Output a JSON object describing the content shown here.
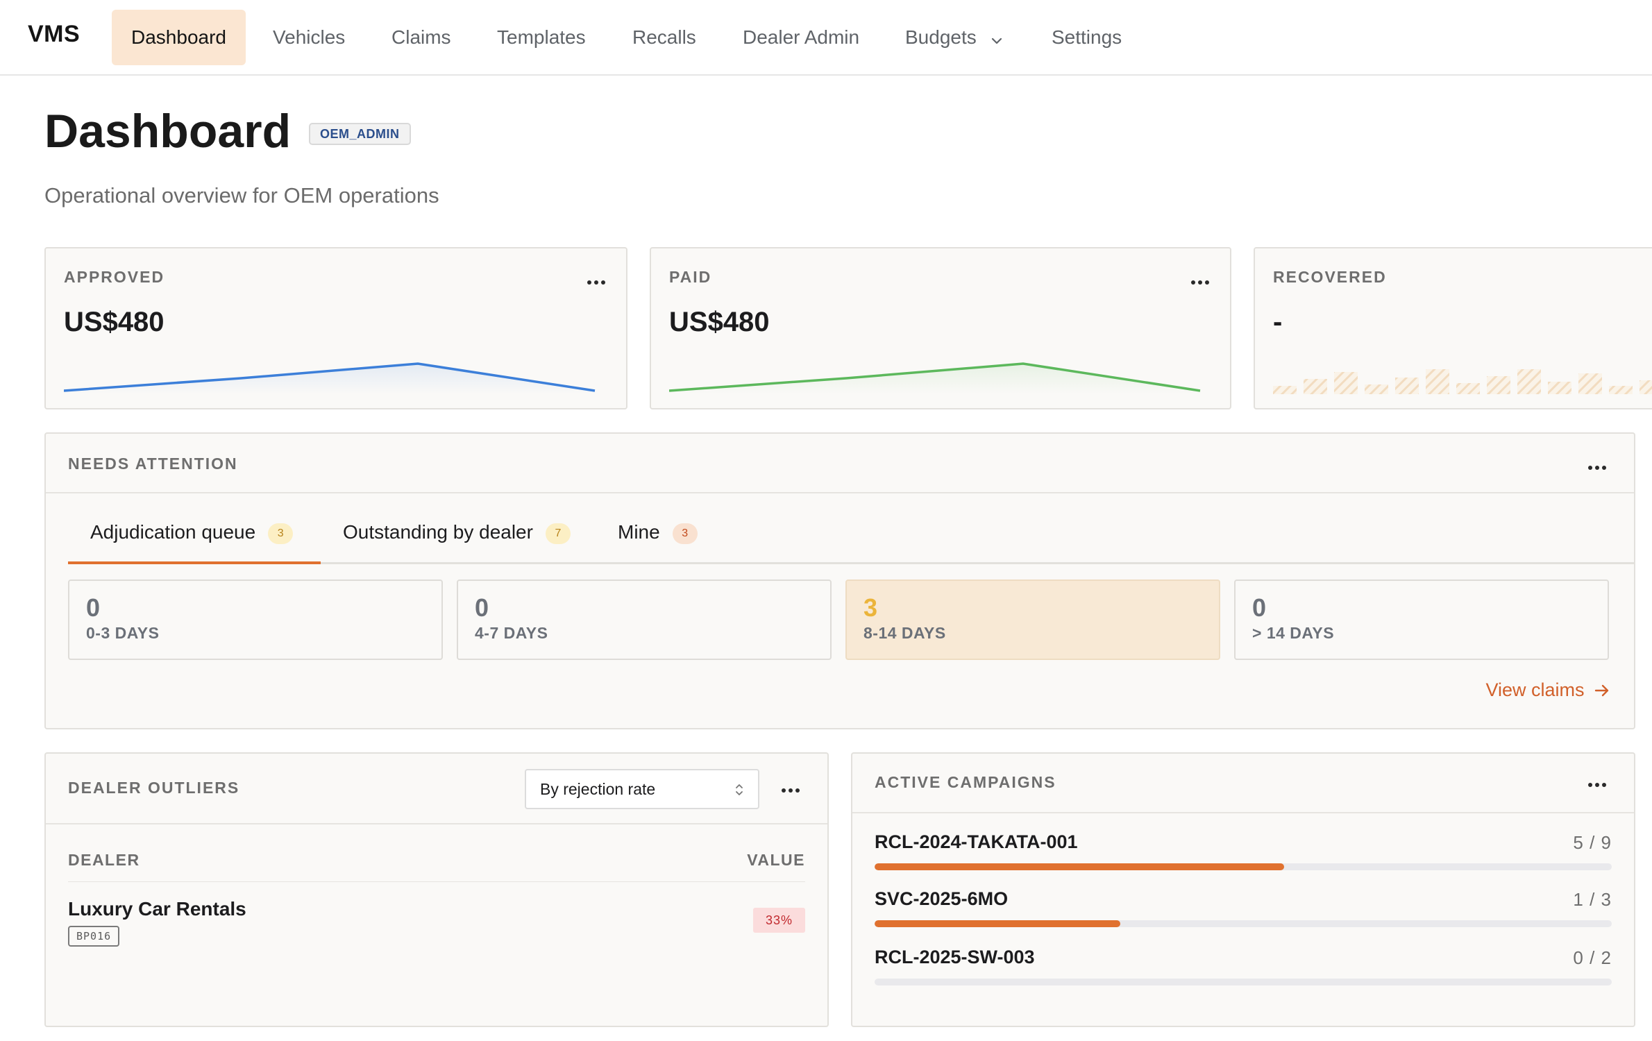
{
  "nav": {
    "brand": "VMS",
    "items": [
      {
        "label": "Dashboard"
      },
      {
        "label": "Vehicles"
      },
      {
        "label": "Claims"
      },
      {
        "label": "Templates"
      },
      {
        "label": "Recalls"
      },
      {
        "label": "Dealer Admin"
      },
      {
        "label": "Budgets"
      },
      {
        "label": "Settings"
      }
    ]
  },
  "header": {
    "title": "Dashboard",
    "role_badge": "OEM_ADMIN",
    "subtitle": "Operational overview for OEM operations"
  },
  "kpis": [
    {
      "label": "APPROVED",
      "value": "US$480",
      "color": "#3c7fd9"
    },
    {
      "label": "PAID",
      "value": "US$480",
      "color": "#5cb85c"
    },
    {
      "label": "RECOVERED",
      "value": "-",
      "color": "#f2dcc0"
    }
  ],
  "attention": {
    "title": "NEEDS ATTENTION",
    "tabs": [
      {
        "label": "Adjudication queue",
        "count": "3"
      },
      {
        "label": "Outstanding by dealer",
        "count": "7"
      },
      {
        "label": "Mine",
        "count": "3"
      }
    ],
    "buckets": [
      {
        "value": "0",
        "label": "0-3 DAYS"
      },
      {
        "value": "0",
        "label": "4-7 DAYS"
      },
      {
        "value": "3",
        "label": "8-14 DAYS"
      },
      {
        "value": "0",
        "label": "> 14 DAYS"
      }
    ],
    "view_link": "View claims"
  },
  "outliers": {
    "title": "DEALER OUTLIERS",
    "select_value": "By rejection rate",
    "col_dealer": "DEALER",
    "col_value": "VALUE",
    "rows": [
      {
        "name": "Luxury Car Rentals",
        "code": "BP016",
        "value": "33%"
      }
    ]
  },
  "campaigns": {
    "title": "ACTIVE CAMPAIGNS",
    "items": [
      {
        "name": "RCL-2024-TAKATA-001",
        "count": "5 / 9",
        "progress": 0.556
      },
      {
        "name": "SVC-2025-6MO",
        "count": "1 / 3",
        "progress": 0.333
      },
      {
        "name": "RCL-2025-SW-003",
        "count": "0 / 2",
        "progress": 0
      }
    ]
  },
  "colors": {
    "accent": "#e0712f",
    "nav_active_bg": "#fbe6d2"
  },
  "icons": {
    "more": "more-horizontal-icon",
    "chevron": "chevron-down-icon",
    "arrow": "arrow-right-icon",
    "select": "select-arrows-icon"
  }
}
